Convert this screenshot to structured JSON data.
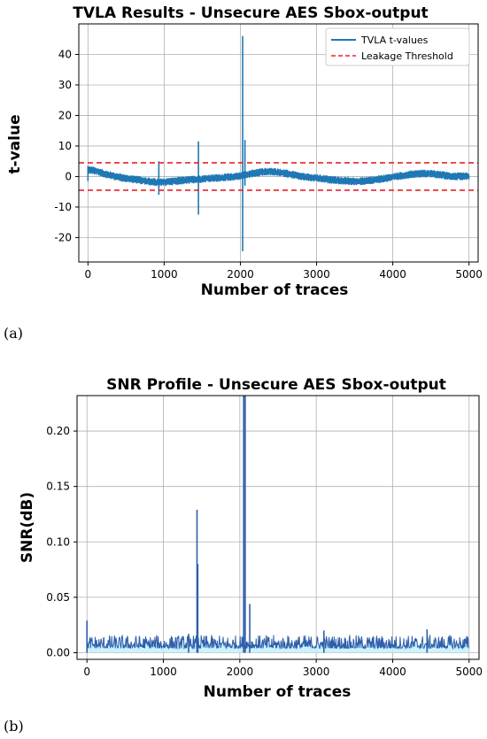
{
  "panels": {
    "a": "(a)",
    "b": "(b)"
  },
  "chart_data": [
    {
      "type": "line",
      "title": "TVLA Results - Unsecure AES Sbox-output",
      "xlabel": "Number of traces",
      "ylabel": "t-value",
      "xlim": [
        -120,
        5120
      ],
      "ylim": [
        -28,
        50
      ],
      "x_ticks": [
        0,
        1000,
        2000,
        3000,
        4000,
        5000
      ],
      "y_ticks": [
        -20,
        -10,
        0,
        10,
        20,
        30,
        40
      ],
      "grid": true,
      "legend": {
        "placement": "top-right",
        "entries": [
          "TVLA t-values",
          "Leakage Threshold"
        ]
      },
      "series": [
        {
          "name": "TVLA t-values",
          "color": "#1f77b4",
          "x": [
            0,
            100,
            200,
            300,
            400,
            500,
            600,
            700,
            800,
            900,
            930,
            1000,
            1100,
            1200,
            1300,
            1400,
            1450,
            1500,
            1600,
            1700,
            1800,
            1900,
            2000,
            2050,
            2100,
            2200,
            2300,
            2400,
            2500,
            2600,
            2700,
            2800,
            2900,
            3000,
            3100,
            3200,
            3300,
            3400,
            3500,
            3600,
            3700,
            3800,
            3900,
            4000,
            4100,
            4200,
            4300,
            4400,
            4500,
            4600,
            4700,
            4800,
            4900,
            5000
          ],
          "y": [
            2.2,
            1.8,
            1.0,
            0.4,
            -0.2,
            -0.6,
            -0.9,
            -1.3,
            -1.6,
            -1.9,
            -2.0,
            -1.8,
            -1.6,
            -1.4,
            -1.2,
            -1.0,
            -0.9,
            -0.8,
            -0.6,
            -0.5,
            -0.3,
            -0.1,
            0.2,
            0.5,
            0.8,
            1.1,
            1.5,
            1.6,
            1.4,
            1.0,
            0.5,
            0.0,
            -0.3,
            -0.5,
            -0.8,
            -1.1,
            -1.3,
            -1.5,
            -1.6,
            -1.5,
            -1.3,
            -1.0,
            -0.6,
            -0.2,
            0.2,
            0.6,
            0.9,
            1.0,
            0.9,
            0.6,
            0.3,
            0.1,
            0.0,
            0.0
          ],
          "band": 1.3,
          "spikes": [
            {
              "x": 0,
              "high": 3.5,
              "low": -1.5
            },
            {
              "x": 930,
              "high": 5.0,
              "low": -6.0
            },
            {
              "x": 1450,
              "high": 11.5,
              "low": -12.5
            },
            {
              "x": 2030,
              "high": 46.0,
              "low": -24.5
            },
            {
              "x": 2060,
              "high": 12.0,
              "low": -3.0
            }
          ]
        },
        {
          "name": "Leakage Threshold",
          "color": "#e8232a",
          "style": "dashed",
          "levels": [
            4.5,
            -4.5
          ]
        }
      ]
    },
    {
      "type": "line",
      "title": "SNR Profile - Unsecure AES Sbox-output",
      "xlabel": "Number of traces",
      "ylabel": "SNR(dB)",
      "xlim": [
        -130,
        5130
      ],
      "ylim": [
        -0.006,
        0.232
      ],
      "x_ticks": [
        0,
        1000,
        2000,
        3000,
        4000,
        5000
      ],
      "y_ticks": [
        0.0,
        0.05,
        0.1,
        0.15,
        0.2
      ],
      "y_tick_labels": [
        "0.00",
        "0.05",
        "0.10",
        "0.15",
        "0.20"
      ],
      "grid": true,
      "series": [
        {
          "name": "",
          "color": "#2f5faa",
          "fill_color": "#bfefff",
          "baseline": 0.004,
          "noise": 0.012,
          "spikes": [
            {
              "x": 0,
              "y": 0.029
            },
            {
              "x": 1330,
              "y": 0.017
            },
            {
              "x": 1440,
              "y": 0.129
            },
            {
              "x": 1450,
              "y": 0.08
            },
            {
              "x": 2050,
              "y": 0.232
            },
            {
              "x": 2070,
              "y": 0.232
            },
            {
              "x": 2130,
              "y": 0.044
            },
            {
              "x": 3100,
              "y": 0.02
            },
            {
              "x": 4450,
              "y": 0.021
            }
          ]
        }
      ]
    }
  ]
}
